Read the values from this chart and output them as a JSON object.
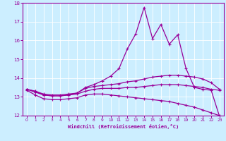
{
  "xlabel": "Windchill (Refroidissement éolien,°C)",
  "bg_color": "#cceeff",
  "line_color": "#990099",
  "xlim": [
    -0.5,
    23.5
  ],
  "ylim": [
    12,
    18
  ],
  "xticks": [
    0,
    1,
    2,
    3,
    4,
    5,
    6,
    7,
    8,
    9,
    10,
    11,
    12,
    13,
    14,
    15,
    16,
    17,
    18,
    19,
    20,
    21,
    22,
    23
  ],
  "yticks": [
    12,
    13,
    14,
    15,
    16,
    17,
    18
  ],
  "line1_x": [
    0,
    1,
    2,
    3,
    4,
    5,
    6,
    7,
    8,
    9,
    10,
    11,
    12,
    13,
    14,
    15,
    16,
    17,
    18,
    19,
    20,
    21,
    22,
    23
  ],
  "line1_y": [
    13.35,
    13.1,
    12.9,
    12.85,
    12.85,
    12.9,
    12.95,
    13.1,
    13.15,
    13.15,
    13.1,
    13.05,
    13.0,
    12.95,
    12.9,
    12.85,
    12.8,
    12.75,
    12.65,
    12.55,
    12.45,
    12.3,
    12.15,
    12.0
  ],
  "line2_x": [
    0,
    1,
    2,
    3,
    4,
    5,
    6,
    7,
    8,
    9,
    10,
    11,
    12,
    13,
    14,
    15,
    16,
    17,
    18,
    19,
    20,
    21,
    22,
    23
  ],
  "line2_y": [
    13.4,
    13.25,
    13.1,
    13.05,
    13.05,
    13.1,
    13.15,
    13.3,
    13.4,
    13.45,
    13.45,
    13.45,
    13.5,
    13.5,
    13.55,
    13.6,
    13.65,
    13.65,
    13.65,
    13.6,
    13.55,
    13.5,
    13.4,
    13.35
  ],
  "line3_x": [
    0,
    1,
    2,
    3,
    4,
    5,
    6,
    7,
    8,
    9,
    10,
    11,
    12,
    13,
    14,
    15,
    16,
    17,
    18,
    19,
    20,
    21,
    22,
    23
  ],
  "line3_y": [
    13.4,
    13.3,
    13.15,
    13.1,
    13.1,
    13.15,
    13.2,
    13.45,
    13.55,
    13.6,
    13.65,
    13.7,
    13.8,
    13.85,
    13.95,
    14.05,
    14.1,
    14.15,
    14.15,
    14.1,
    14.05,
    13.95,
    13.75,
    13.4
  ],
  "line4_x": [
    0,
    1,
    2,
    3,
    4,
    5,
    6,
    7,
    8,
    9,
    10,
    11,
    12,
    13,
    14,
    15,
    16,
    17,
    18,
    19,
    20,
    21,
    22,
    23
  ],
  "line4_y": [
    13.4,
    13.3,
    13.1,
    13.05,
    13.05,
    13.1,
    13.2,
    13.5,
    13.65,
    13.85,
    14.1,
    14.5,
    15.55,
    16.35,
    17.75,
    16.1,
    16.85,
    15.8,
    16.3,
    14.5,
    13.5,
    13.4,
    13.35,
    11.95
  ]
}
